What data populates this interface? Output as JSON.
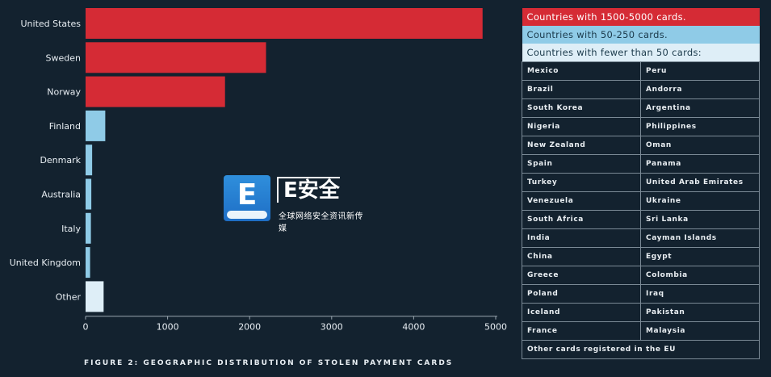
{
  "chart_data": {
    "type": "bar",
    "orientation": "horizontal",
    "categories": [
      "United States",
      "Sweden",
      "Norway",
      "Finland",
      "Denmark",
      "Australia",
      "Italy",
      "United Kingdom",
      "Other"
    ],
    "values": [
      4840,
      2200,
      1700,
      240,
      80,
      70,
      65,
      55,
      220
    ],
    "bar_colors": [
      "#d52b35",
      "#d52b35",
      "#d52b35",
      "#8fcbe7",
      "#8fcbe7",
      "#8fcbe7",
      "#8fcbe7",
      "#8fcbe7",
      "#deeef7"
    ],
    "xticks": [
      0,
      1000,
      2000,
      3000,
      4000,
      5000
    ],
    "xlim": [
      0,
      5000
    ],
    "grid": false,
    "caption": "FIGURE 2: GEOGRAPHIC DISTRIBUTION OF STOLEN PAYMENT CARDS"
  },
  "legend": {
    "high": "Countries with 1500-5000 cards.",
    "mid": "Countries with 50-250 cards.",
    "low": "Countries with fewer than 50 cards:",
    "rows": [
      [
        "Mexico",
        "Peru"
      ],
      [
        "Brazil",
        "Andorra"
      ],
      [
        "South Korea",
        "Argentina"
      ],
      [
        "Nigeria",
        "Philippines"
      ],
      [
        "New Zealand",
        "Oman"
      ],
      [
        "Spain",
        "Panama"
      ],
      [
        "Turkey",
        "United Arab Emirates"
      ],
      [
        "Venezuela",
        "Ukraine"
      ],
      [
        "South Africa",
        "Sri Lanka"
      ],
      [
        "India",
        "Cayman Islands"
      ],
      [
        "China",
        "Egypt"
      ],
      [
        "Greece",
        "Colombia"
      ],
      [
        "Poland",
        "Iraq"
      ],
      [
        "Iceland",
        "Pakistan"
      ],
      [
        "France",
        "Malaysia"
      ]
    ],
    "footer": "Other cards registered in the EU"
  },
  "watermark": {
    "letter": "E",
    "brand": "E安全",
    "slogan": "全球网络安全资讯新传媒"
  },
  "colors": {
    "background": "#13222f",
    "high": "#d52b35",
    "mid": "#8fcbe7",
    "low": "#deeef7",
    "border": "#7b8a96"
  }
}
